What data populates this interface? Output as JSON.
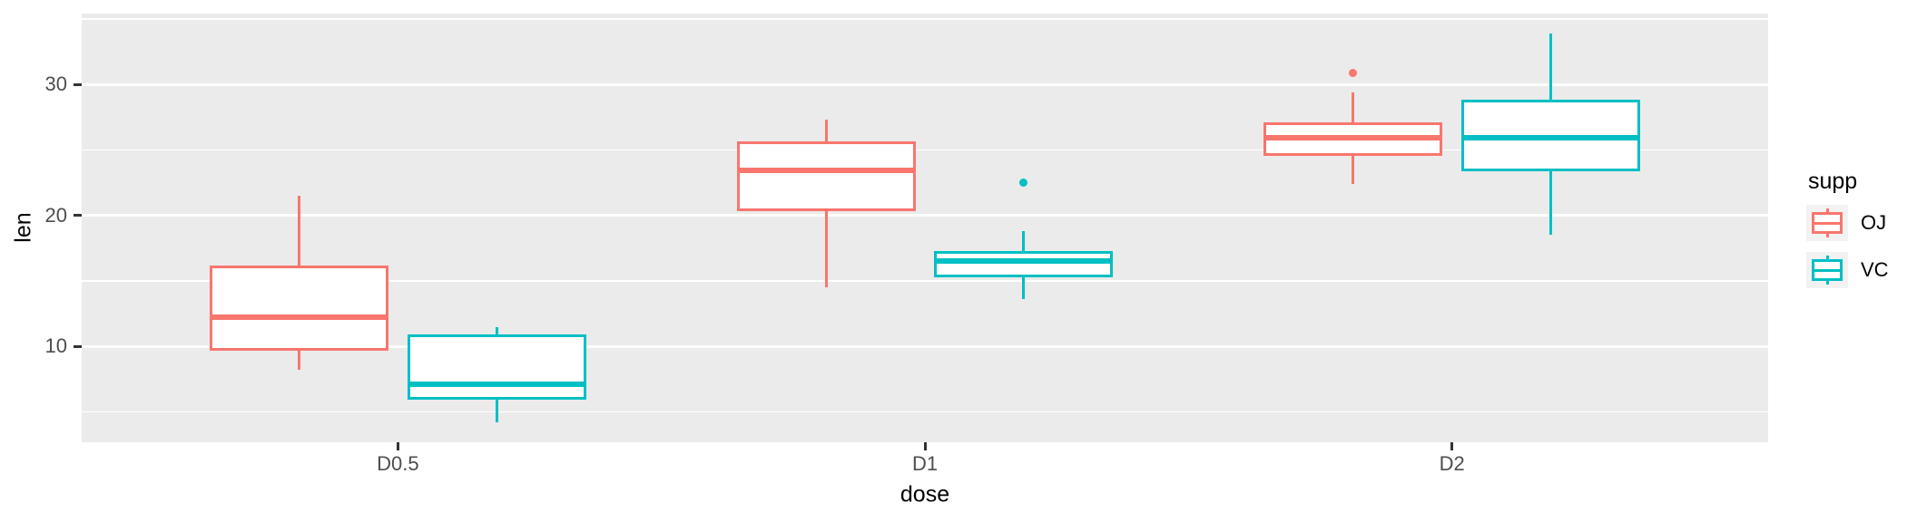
{
  "chart_data": {
    "type": "boxplot",
    "title": "",
    "xlabel": "dose",
    "ylabel": "len",
    "categories": [
      "D0.5",
      "D1",
      "D2"
    ],
    "y_ticks": [
      10,
      20,
      30
    ],
    "y_minor_ticks": [
      5,
      15,
      25,
      35
    ],
    "ylim": [
      2.7,
      35.4
    ],
    "grid": "on",
    "legend": {
      "title": "supp",
      "position": "right",
      "entries": [
        "OJ",
        "VC"
      ]
    },
    "series": [
      {
        "name": "OJ",
        "color": "#F8766D",
        "boxes": [
          {
            "category": "D0.5",
            "whisker_min": 8.2,
            "q1": 9.7,
            "median": 12.25,
            "q3": 16.175,
            "whisker_max": 21.5,
            "outliers": []
          },
          {
            "category": "D1",
            "whisker_min": 14.5,
            "q1": 20.3,
            "median": 23.45,
            "q3": 25.65,
            "whisker_max": 27.3,
            "outliers": []
          },
          {
            "category": "D2",
            "whisker_min": 22.4,
            "q1": 24.575,
            "median": 25.95,
            "q3": 27.075,
            "whisker_max": 29.4,
            "outliers": [
              30.9
            ]
          }
        ]
      },
      {
        "name": "VC",
        "color": "#00BFC4",
        "boxes": [
          {
            "category": "D0.5",
            "whisker_min": 4.2,
            "q1": 5.95,
            "median": 7.15,
            "q3": 10.9,
            "whisker_max": 11.5,
            "outliers": []
          },
          {
            "category": "D1",
            "whisker_min": 13.6,
            "q1": 15.275,
            "median": 16.5,
            "q3": 17.3,
            "whisker_max": 18.8,
            "outliers": [
              22.5
            ]
          },
          {
            "category": "D2",
            "whisker_min": 18.5,
            "q1": 23.375,
            "median": 25.95,
            "q3": 28.8,
            "whisker_max": 33.9,
            "outliers": []
          }
        ]
      }
    ]
  },
  "style": {
    "panel_bg": "#EBEBEB",
    "grid_color": "#FFFFFF",
    "legend_key_bg": "#F2F2F2",
    "tick_label_color": "#4D4D4D",
    "tick_mark_color": "#333333",
    "axis_title_color": "#000000",
    "background": "#FFFFFF"
  }
}
